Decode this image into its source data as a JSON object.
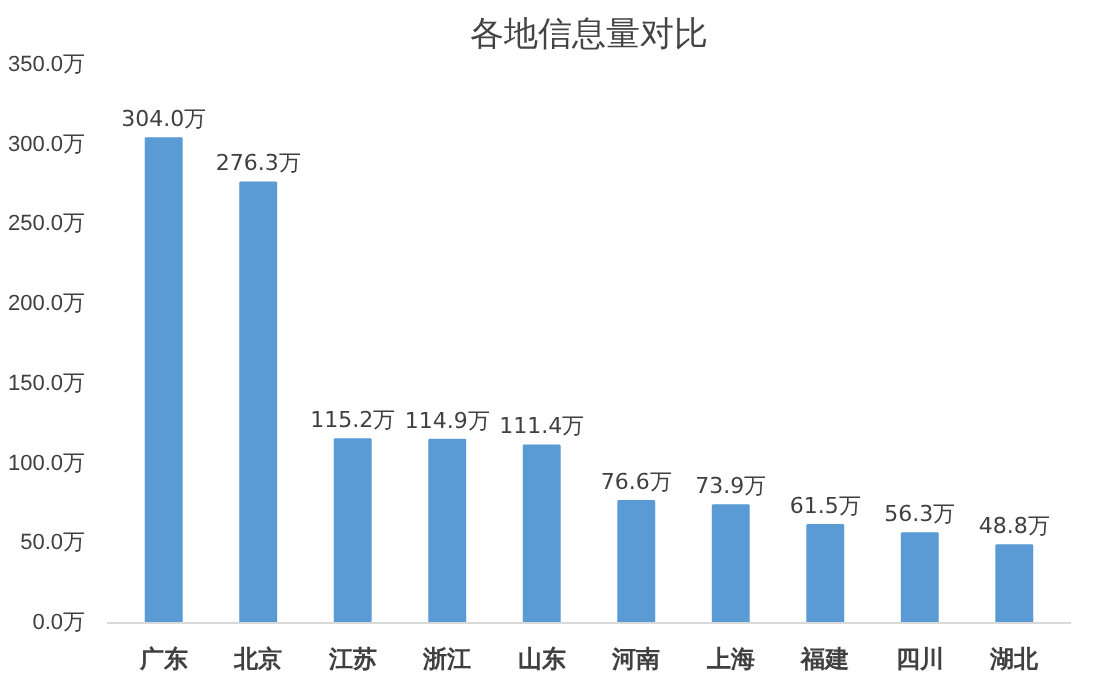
{
  "chart_data": {
    "type": "bar",
    "title": "各地信息量对比",
    "categories": [
      "广东",
      "北京",
      "江苏",
      "浙江",
      "山东",
      "河南",
      "上海",
      "福建",
      "四川",
      "湖北"
    ],
    "values": [
      304.0,
      276.3,
      115.2,
      114.9,
      111.4,
      76.6,
      73.9,
      61.5,
      56.3,
      48.8
    ],
    "value_labels": [
      "304.0万",
      "276.3万",
      "115.2万",
      "114.9万",
      "111.4万",
      "76.6万",
      "73.9万",
      "61.5万",
      "56.3万",
      "48.8万"
    ],
    "color": "#5b9bd5",
    "ylim": [
      0,
      350
    ],
    "yticks": [
      {
        "value": 0,
        "label": "0.0万"
      },
      {
        "value": 50,
        "label": "50.0万"
      },
      {
        "value": 100,
        "label": "100.0万"
      },
      {
        "value": 150,
        "label": "150.0万"
      },
      {
        "value": 200,
        "label": "200.0万"
      },
      {
        "value": 250,
        "label": "250.0万"
      },
      {
        "value": 300,
        "label": "300.0万"
      },
      {
        "value": 350,
        "label": "350.0万"
      }
    ],
    "grid": false
  }
}
